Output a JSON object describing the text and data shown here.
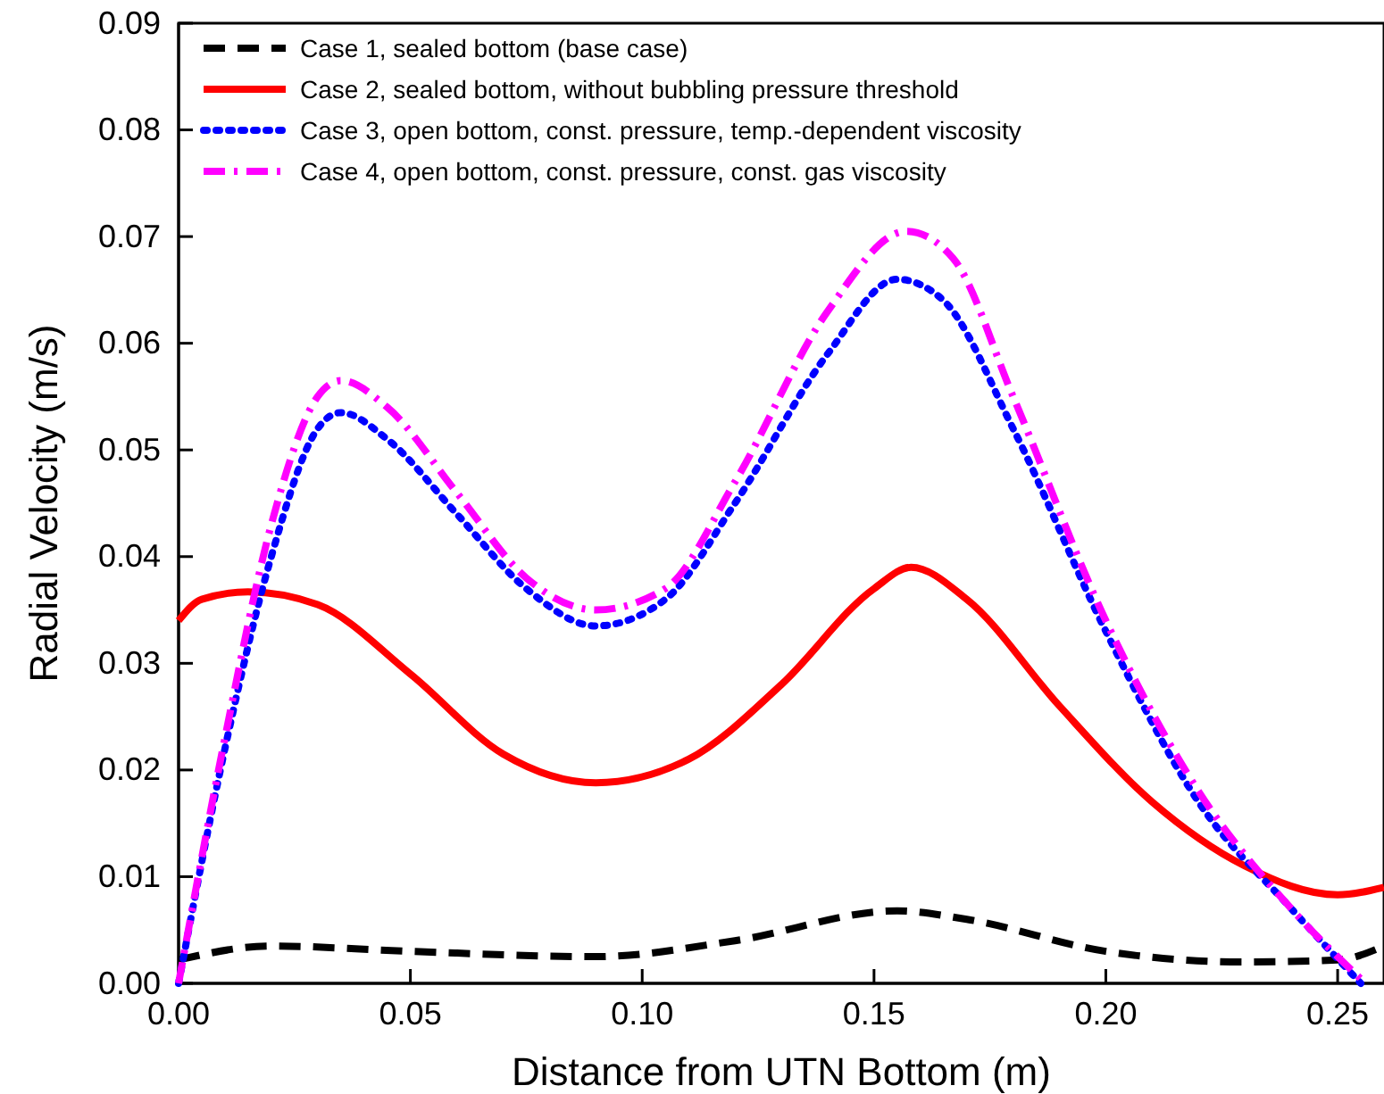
{
  "chart_data": {
    "type": "line",
    "xlabel": "Distance from UTN Bottom (m)",
    "ylabel": "Radial Velocity (m/s)",
    "xlim": [
      0,
      0.26
    ],
    "xticks": [
      {
        "value": 0,
        "label": "0.00"
      },
      {
        "value": 0.05,
        "label": "0.05"
      },
      {
        "value": 0.1,
        "label": "0.10"
      },
      {
        "value": 0.15,
        "label": "0.15"
      },
      {
        "value": 0.2,
        "label": "0.20"
      },
      {
        "value": 0.25,
        "label": "0.25"
      }
    ],
    "ylim": [
      0,
      0.09
    ],
    "yticks": [
      {
        "value": 0,
        "label": "0.00"
      },
      {
        "value": 0.01,
        "label": "0.01"
      },
      {
        "value": 0.02,
        "label": "0.02"
      },
      {
        "value": 0.03,
        "label": "0.03"
      },
      {
        "value": 0.04,
        "label": "0.04"
      },
      {
        "value": 0.05,
        "label": "0.05"
      },
      {
        "value": 0.06,
        "label": "0.06"
      },
      {
        "value": 0.07,
        "label": "0.07"
      },
      {
        "value": 0.08,
        "label": "0.08"
      },
      {
        "value": 0.09,
        "label": "0.09"
      }
    ],
    "grid": false,
    "legend": "top left",
    "marker": "none",
    "series": [
      {
        "name": "Case 1, sealed bottom (base case)",
        "color": "#000000",
        "line_style": "dashed",
        "x": [
          0,
          0.02,
          0.05,
          0.09,
          0.12,
          0.155,
          0.17,
          0.2,
          0.23,
          0.25,
          0.26
        ],
        "values": [
          0.0022,
          0.0035,
          0.003,
          0.0025,
          0.004,
          0.0068,
          0.006,
          0.003,
          0.002,
          0.0022,
          0.0035
        ]
      },
      {
        "name": "Case 2, sealed bottom, without bubbling pressure threshold",
        "color": "#ff0000",
        "line_style": "solid",
        "x": [
          0,
          0.005,
          0.015,
          0.03,
          0.05,
          0.07,
          0.09,
          0.11,
          0.13,
          0.15,
          0.158,
          0.17,
          0.19,
          0.21,
          0.23,
          0.25,
          0.26
        ],
        "values": [
          0.034,
          0.036,
          0.0367,
          0.0355,
          0.029,
          0.0215,
          0.0188,
          0.021,
          0.028,
          0.037,
          0.039,
          0.036,
          0.026,
          0.017,
          0.011,
          0.0083,
          0.009
        ]
      },
      {
        "name": "Case 3, open bottom, const. pressure, temp.-dependent viscosity",
        "color": "#0000ff",
        "line_style": "dotted",
        "x": [
          0,
          0.01,
          0.02,
          0.03,
          0.035,
          0.045,
          0.06,
          0.075,
          0.09,
          0.105,
          0.12,
          0.14,
          0.155,
          0.165,
          0.18,
          0.2,
          0.22,
          0.24,
          0.255
        ],
        "values": [
          0,
          0.022,
          0.04,
          0.052,
          0.0535,
          0.051,
          0.044,
          0.037,
          0.0335,
          0.036,
          0.045,
          0.059,
          0.066,
          0.064,
          0.052,
          0.033,
          0.017,
          0.007,
          0
        ]
      },
      {
        "name": "Case 4, open bottom, const. pressure, const. gas viscosity",
        "color": "#ff00ff",
        "line_style": "dashdot",
        "x": [
          0,
          0.01,
          0.02,
          0.03,
          0.035,
          0.045,
          0.06,
          0.075,
          0.09,
          0.105,
          0.12,
          0.14,
          0.157,
          0.167,
          0.18,
          0.2,
          0.22,
          0.24,
          0.256
        ],
        "values": [
          0,
          0.023,
          0.043,
          0.055,
          0.0565,
          0.054,
          0.046,
          0.038,
          0.035,
          0.037,
          0.047,
          0.063,
          0.0705,
          0.068,
          0.055,
          0.034,
          0.018,
          0.007,
          0
        ]
      }
    ]
  }
}
